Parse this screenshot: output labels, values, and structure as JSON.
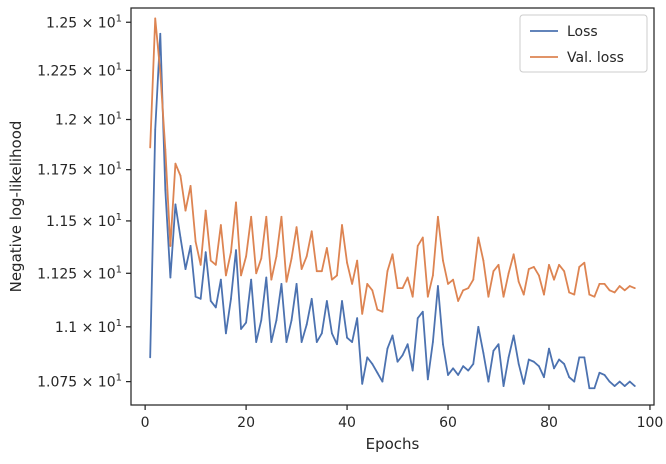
{
  "chart_data": {
    "type": "line",
    "xlabel": "Epochs",
    "ylabel": "Negative log-likelihood",
    "xlim": [
      -2.8,
      100.8
    ],
    "ylim": [
      10.645,
      12.575
    ],
    "y_scale": "log",
    "grid": false,
    "legend_position": "top-right",
    "x_ticks": [
      {
        "value": 0,
        "label": "0"
      },
      {
        "value": 20,
        "label": "20"
      },
      {
        "value": 40,
        "label": "40"
      },
      {
        "value": 60,
        "label": "60"
      },
      {
        "value": 80,
        "label": "80"
      },
      {
        "value": 100,
        "label": "100"
      }
    ],
    "y_ticks": [
      {
        "value": 10.75,
        "mantissa": "1.075",
        "exponent": "1"
      },
      {
        "value": 11.0,
        "mantissa": "1.1",
        "exponent": "1"
      },
      {
        "value": 11.25,
        "mantissa": "1.125",
        "exponent": "1"
      },
      {
        "value": 11.5,
        "mantissa": "1.15",
        "exponent": "1"
      },
      {
        "value": 11.75,
        "mantissa": "1.175",
        "exponent": "1"
      },
      {
        "value": 12.0,
        "mantissa": "1.2",
        "exponent": "1"
      },
      {
        "value": 12.25,
        "mantissa": "1.225",
        "exponent": "1"
      },
      {
        "value": 12.5,
        "mantissa": "1.25",
        "exponent": "1"
      }
    ],
    "x": [
      1,
      2,
      3,
      4,
      5,
      6,
      7,
      8,
      9,
      10,
      11,
      12,
      13,
      14,
      15,
      16,
      17,
      18,
      19,
      20,
      21,
      22,
      23,
      24,
      25,
      26,
      27,
      28,
      29,
      30,
      31,
      32,
      33,
      34,
      35,
      36,
      37,
      38,
      39,
      40,
      41,
      42,
      43,
      44,
      45,
      46,
      47,
      48,
      49,
      50,
      51,
      52,
      53,
      54,
      55,
      56,
      57,
      58,
      59,
      60,
      61,
      62,
      63,
      64,
      65,
      66,
      67,
      68,
      69,
      70,
      71,
      72,
      73,
      74,
      75,
      76,
      77,
      78,
      79,
      80,
      81,
      82,
      83,
      84,
      85,
      86,
      87,
      88,
      89,
      90,
      91,
      92,
      93,
      94,
      95,
      96,
      97
    ],
    "series": [
      {
        "name": "Loss",
        "color": "#4c72b0",
        "values": [
          10.86,
          11.95,
          12.44,
          11.65,
          11.23,
          11.58,
          11.42,
          11.27,
          11.38,
          11.14,
          11.13,
          11.35,
          11.12,
          11.09,
          11.22,
          10.97,
          11.13,
          11.36,
          10.99,
          11.02,
          11.22,
          10.93,
          11.03,
          11.23,
          10.93,
          11.03,
          11.2,
          10.93,
          11.03,
          11.2,
          10.93,
          11.01,
          11.13,
          10.93,
          10.97,
          11.12,
          10.97,
          10.92,
          11.12,
          10.95,
          10.93,
          11.04,
          10.74,
          10.86,
          10.83,
          10.79,
          10.75,
          10.9,
          10.96,
          10.84,
          10.87,
          10.92,
          10.8,
          11.04,
          11.07,
          10.76,
          10.93,
          11.19,
          10.92,
          10.78,
          10.81,
          10.78,
          10.82,
          10.8,
          10.83,
          11.0,
          10.88,
          10.75,
          10.89,
          10.92,
          10.73,
          10.86,
          10.96,
          10.83,
          10.74,
          10.85,
          10.84,
          10.82,
          10.77,
          10.9,
          10.81,
          10.85,
          10.83,
          10.77,
          10.75,
          10.86,
          10.86,
          10.72,
          10.72,
          10.79,
          10.78,
          10.75,
          10.73,
          10.75,
          10.73,
          10.75,
          10.73
        ]
      },
      {
        "name": "Val. loss",
        "color": "#dd8452",
        "values": [
          11.86,
          12.52,
          12.24,
          11.85,
          11.38,
          11.78,
          11.72,
          11.55,
          11.67,
          11.4,
          11.29,
          11.55,
          11.31,
          11.29,
          11.48,
          11.24,
          11.35,
          11.59,
          11.24,
          11.33,
          11.52,
          11.25,
          11.32,
          11.52,
          11.22,
          11.33,
          11.52,
          11.21,
          11.32,
          11.47,
          11.27,
          11.33,
          11.45,
          11.26,
          11.26,
          11.37,
          11.22,
          11.24,
          11.48,
          11.3,
          11.2,
          11.31,
          11.06,
          11.2,
          11.17,
          11.08,
          11.07,
          11.26,
          11.34,
          11.18,
          11.18,
          11.23,
          11.14,
          11.38,
          11.42,
          11.14,
          11.24,
          11.52,
          11.31,
          11.2,
          11.22,
          11.12,
          11.17,
          11.18,
          11.22,
          11.42,
          11.31,
          11.14,
          11.26,
          11.29,
          11.14,
          11.25,
          11.34,
          11.21,
          11.15,
          11.27,
          11.28,
          11.24,
          11.15,
          11.29,
          11.22,
          11.29,
          11.26,
          11.16,
          11.15,
          11.28,
          11.3,
          11.15,
          11.14,
          11.2,
          11.2,
          11.17,
          11.16,
          11.19,
          11.17,
          11.19,
          11.18
        ]
      }
    ]
  }
}
